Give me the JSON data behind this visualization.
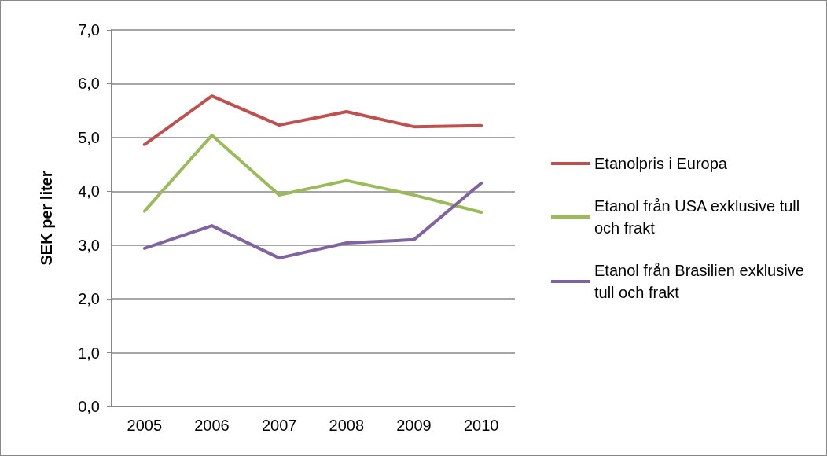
{
  "chart_data": {
    "type": "line",
    "ylabel": "SEK per liter",
    "categories": [
      "2005",
      "2006",
      "2007",
      "2008",
      "2009",
      "2010"
    ],
    "series": [
      {
        "name": "Etanolpris i Europa",
        "color": "#c0504d",
        "values": [
          4.87,
          5.77,
          5.23,
          5.48,
          5.2,
          5.22
        ]
      },
      {
        "name": "Etanol från USA exklusive tull och frakt",
        "color": "#9bbb59",
        "values": [
          3.63,
          5.04,
          3.93,
          4.2,
          3.93,
          3.61
        ]
      },
      {
        "name": "Etanol från Brasilien exklusive tull och frakt",
        "color": "#8064a2",
        "values": [
          2.94,
          3.36,
          2.76,
          3.04,
          3.1,
          4.15
        ]
      }
    ],
    "ylim": [
      0,
      7
    ],
    "yticks": [
      {
        "value": 0,
        "label": "0,0"
      },
      {
        "value": 1,
        "label": "1,0"
      },
      {
        "value": 2,
        "label": "2,0"
      },
      {
        "value": 3,
        "label": "3,0"
      },
      {
        "value": 4,
        "label": "4,0"
      },
      {
        "value": 5,
        "label": "5,0"
      },
      {
        "value": 6,
        "label": "6,0"
      },
      {
        "value": 7,
        "label": "7,0"
      }
    ],
    "grid": "y",
    "legend": "right",
    "marker": "none",
    "line_style": "solid"
  }
}
